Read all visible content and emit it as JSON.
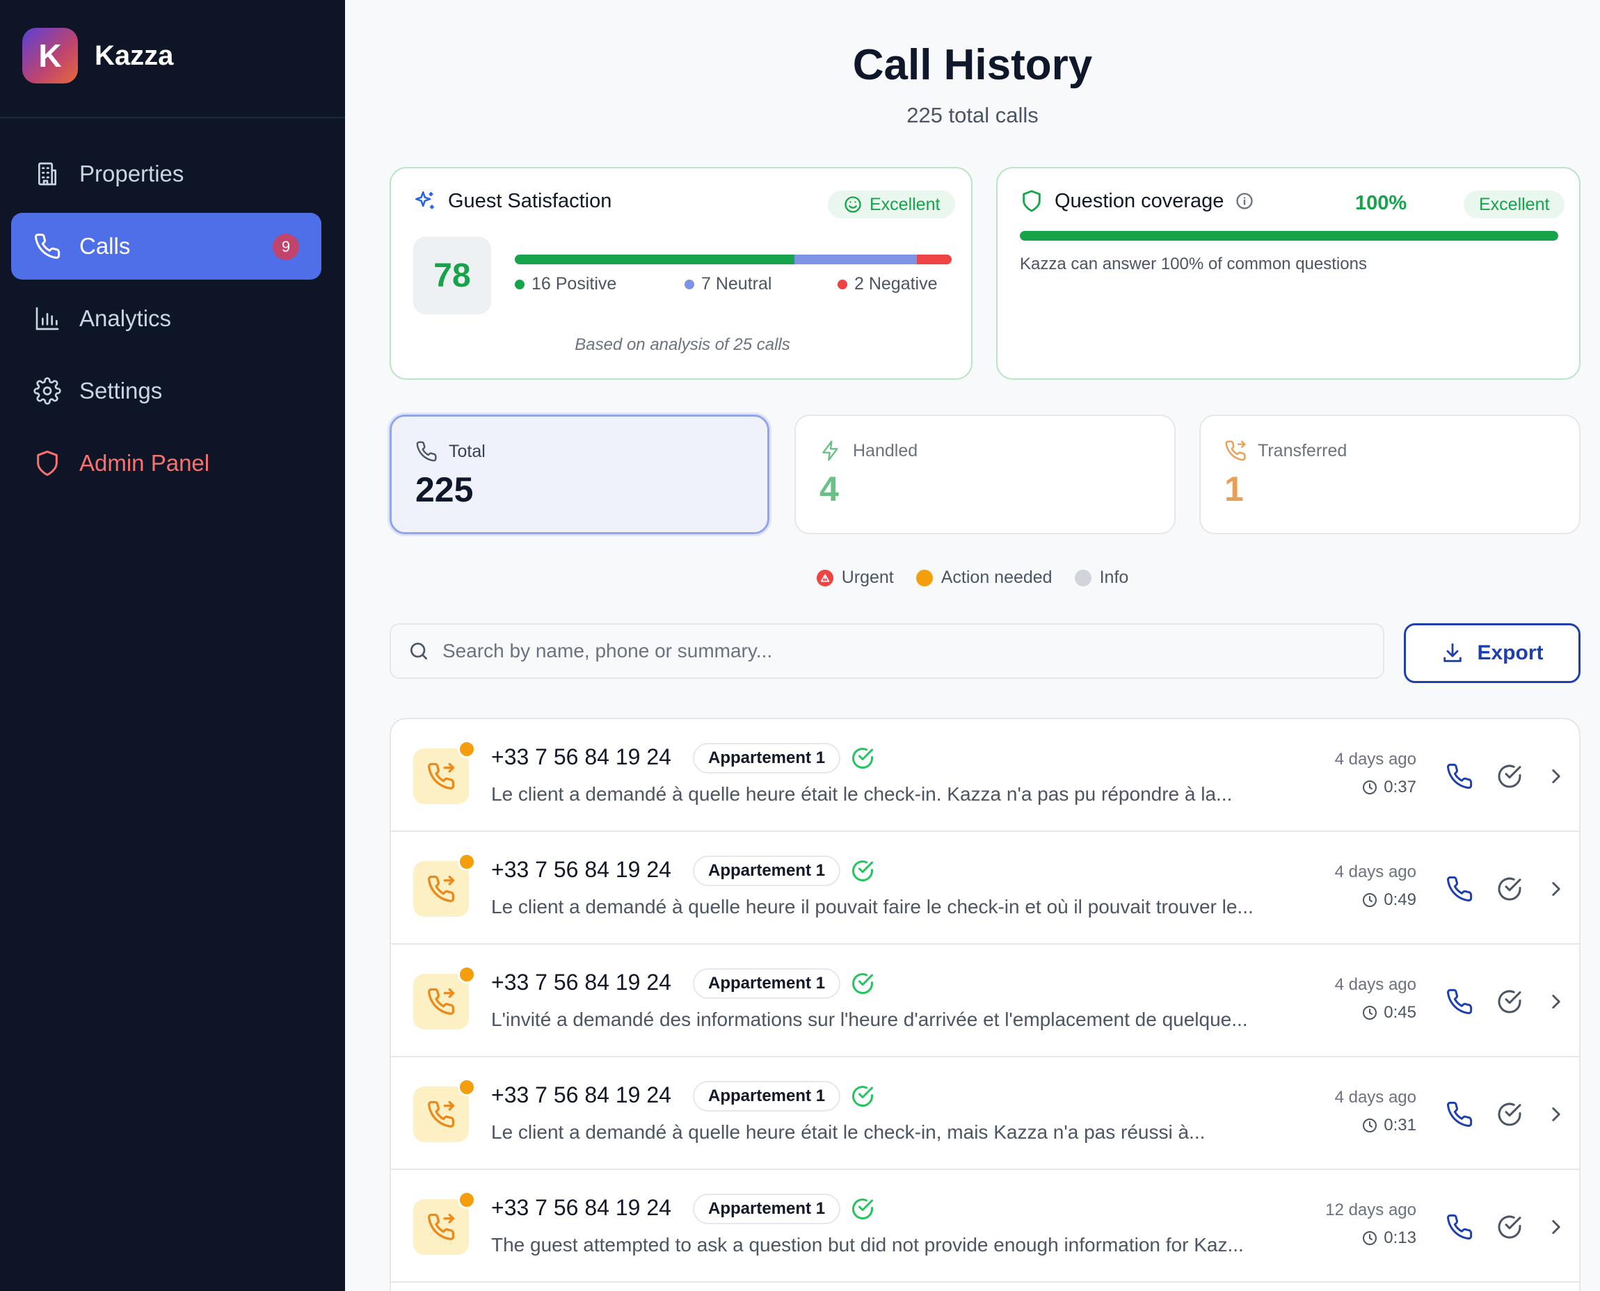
{
  "brand": {
    "logo_letter": "K",
    "name": "Kazza"
  },
  "nav": {
    "items": [
      {
        "label": "Properties",
        "icon": "building-icon"
      },
      {
        "label": "Calls",
        "icon": "phone-icon",
        "badge": "9",
        "active": true
      },
      {
        "label": "Analytics",
        "icon": "bar-chart-icon"
      },
      {
        "label": "Settings",
        "icon": "gear-icon"
      },
      {
        "label": "Admin Panel",
        "icon": "shield-icon",
        "color": "#f87171"
      }
    ]
  },
  "header": {
    "title": "Call History",
    "subtitle": "225 total calls"
  },
  "satisfaction": {
    "title": "Guest Satisfaction",
    "rating": "Excellent",
    "score": "78",
    "positive": 16,
    "neutral": 7,
    "negative": 2,
    "positive_label": "16 Positive",
    "neutral_label": "7 Neutral",
    "negative_label": "2 Negative",
    "note": "Based on analysis of 25 calls",
    "colors": {
      "positive": "#16a34a",
      "neutral": "#7c93e6",
      "negative": "#ef4444"
    }
  },
  "coverage": {
    "title": "Question coverage",
    "percent_label": "100%",
    "percent": 100,
    "rating": "Excellent",
    "description": "Kazza can answer 100% of common questions"
  },
  "stats": {
    "total": {
      "label": "Total",
      "value": "225"
    },
    "handled": {
      "label": "Handled",
      "value": "4",
      "color": "#6bbf87"
    },
    "transferred": {
      "label": "Transferred",
      "value": "1",
      "color": "#e8a055"
    }
  },
  "legend": {
    "urgent": "Urgent",
    "action": "Action needed",
    "info": "Info"
  },
  "search": {
    "placeholder": "Search by name, phone or summary...",
    "value": ""
  },
  "export_label": "Export",
  "calls": [
    {
      "phone": "+33 7 56 84 19 24",
      "property": "Appartement 1",
      "summary": "Le client a demandé à quelle heure était le check-in. Kazza n'a pas pu répondre à la...",
      "time": "4 days ago",
      "duration": "0:37"
    },
    {
      "phone": "+33 7 56 84 19 24",
      "property": "Appartement 1",
      "summary": "Le client a demandé à quelle heure il pouvait faire le check-in et où il pouvait trouver le...",
      "time": "4 days ago",
      "duration": "0:49"
    },
    {
      "phone": "+33 7 56 84 19 24",
      "property": "Appartement 1",
      "summary": "L'invité a demandé des informations sur l'heure d'arrivée et l'emplacement de quelque...",
      "time": "4 days ago",
      "duration": "0:45"
    },
    {
      "phone": "+33 7 56 84 19 24",
      "property": "Appartement 1",
      "summary": "Le client a demandé à quelle heure était le check-in, mais Kazza n'a pas réussi à...",
      "time": "4 days ago",
      "duration": "0:31"
    },
    {
      "phone": "+33 7 56 84 19 24",
      "property": "Appartement 1",
      "summary": "The guest attempted to ask a question but did not provide enough information for Kaz...",
      "time": "12 days ago",
      "duration": "0:13"
    }
  ]
}
